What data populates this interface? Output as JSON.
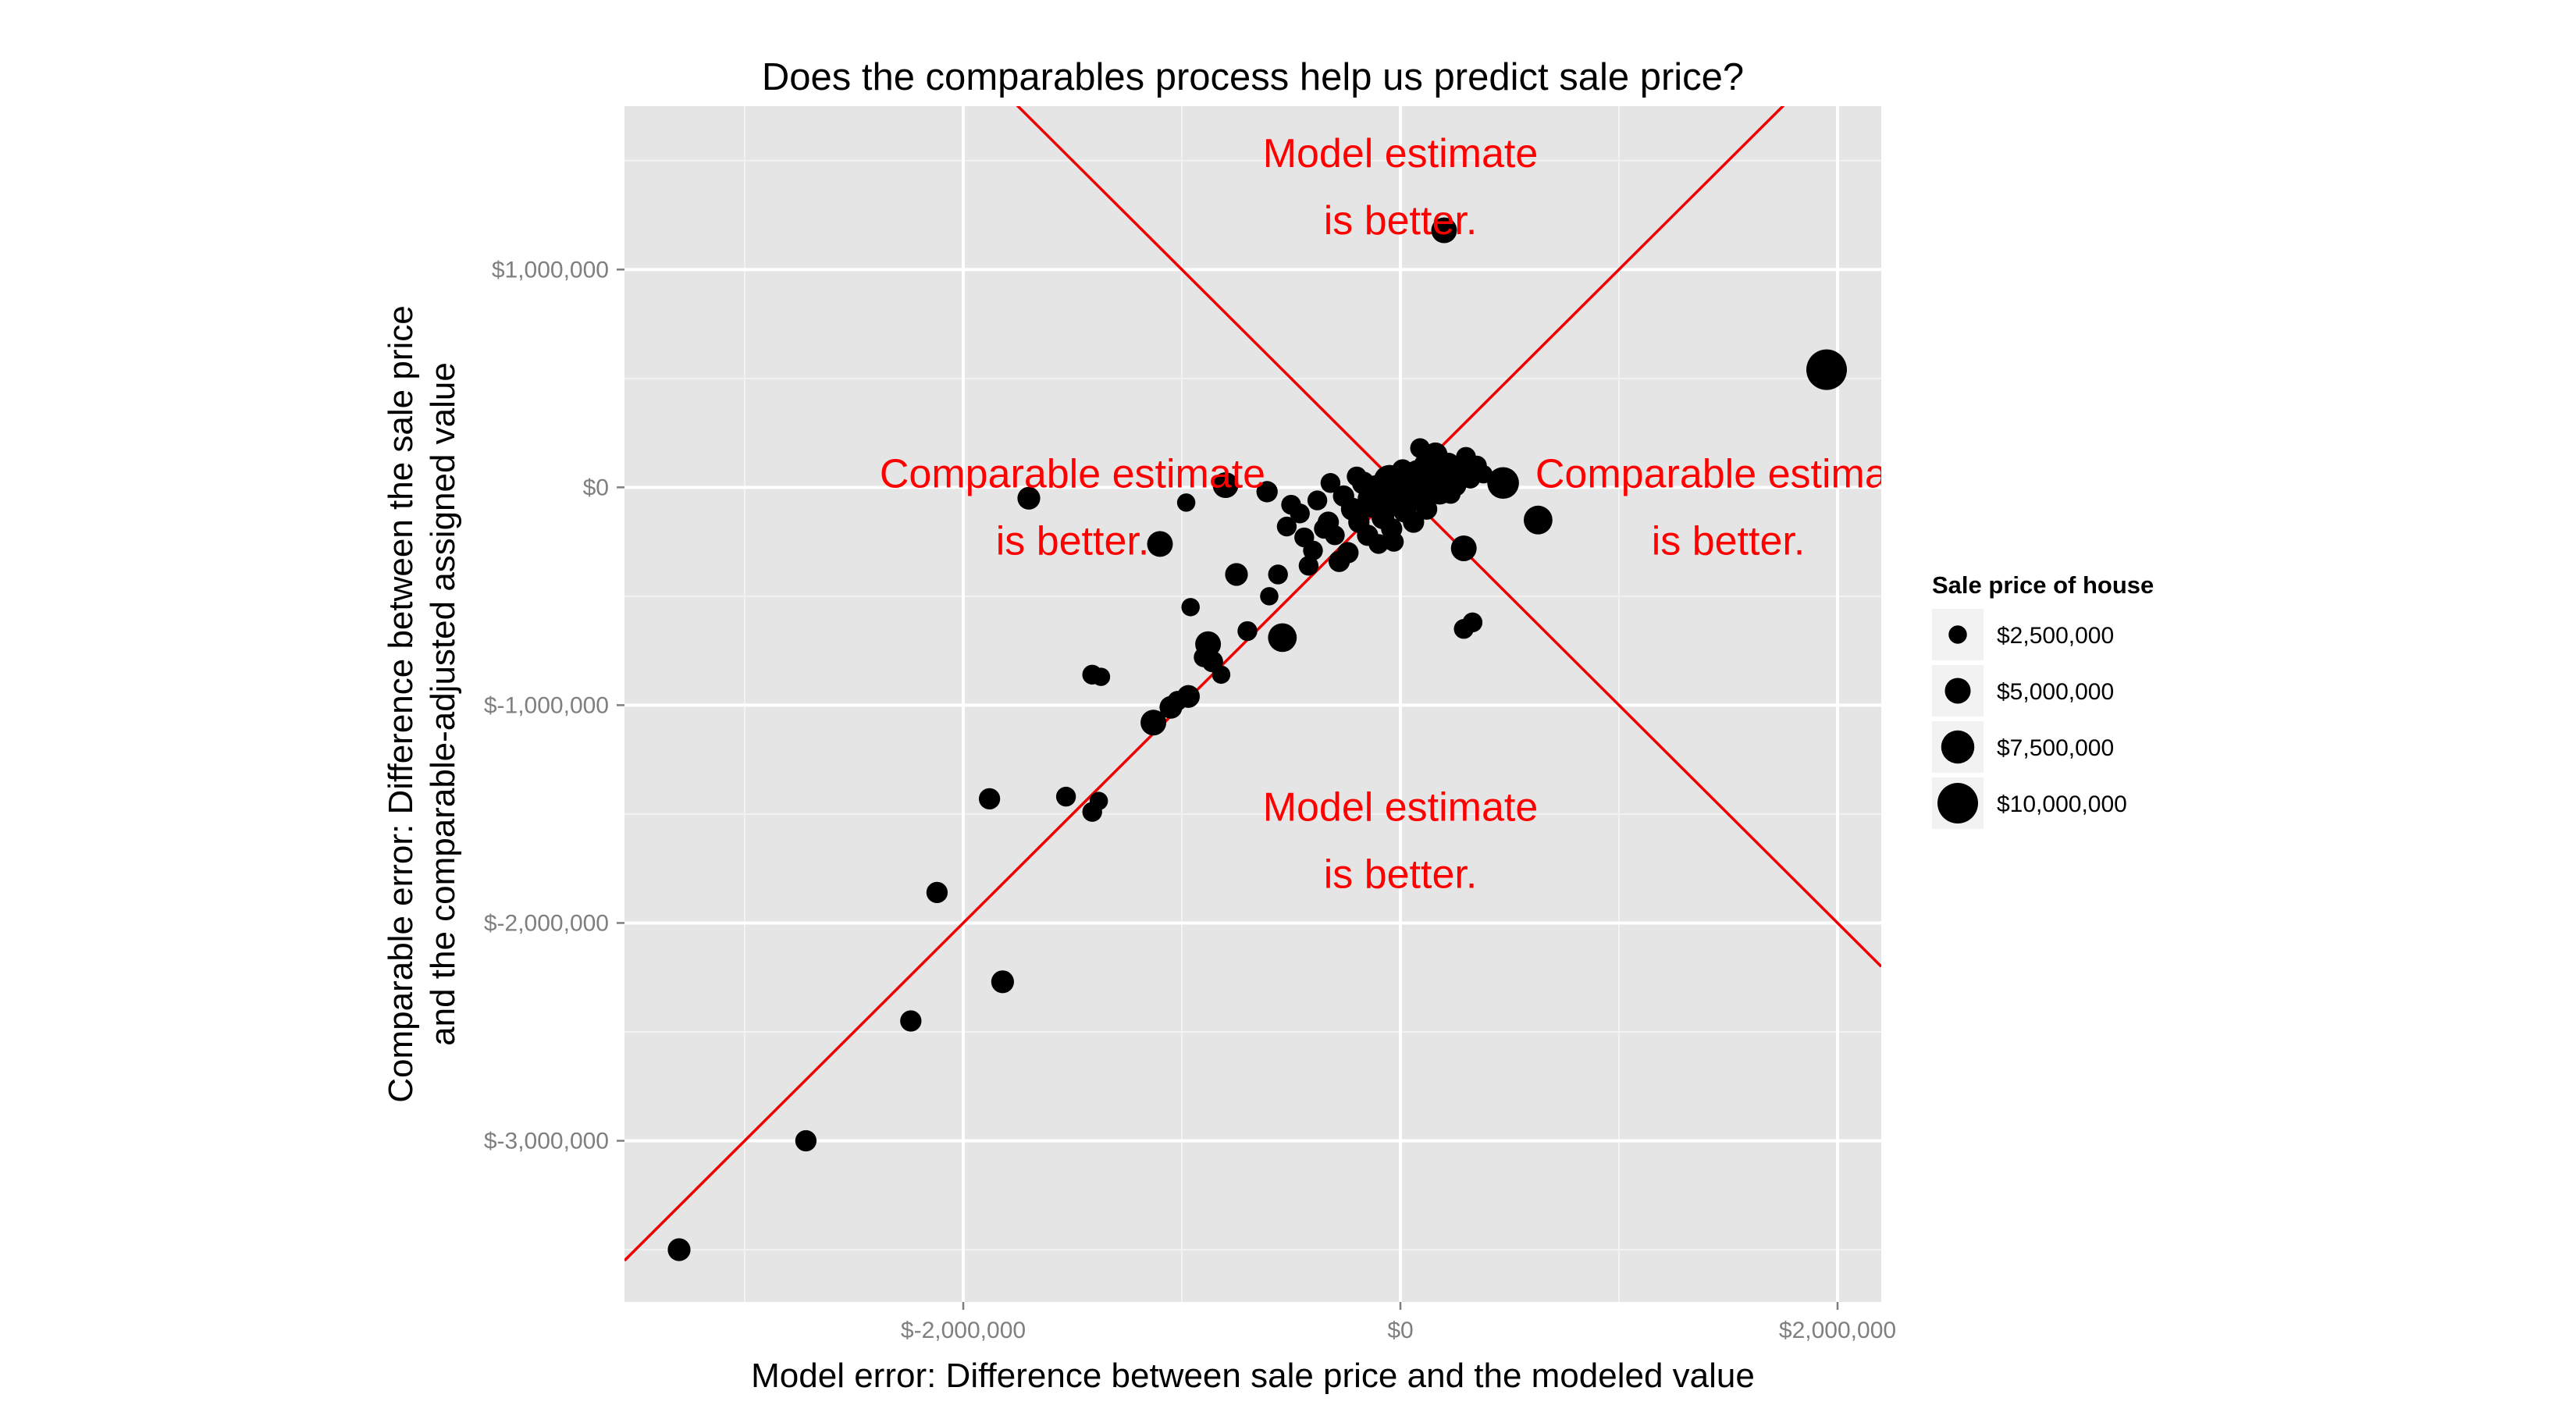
{
  "chart_data": {
    "type": "scatter",
    "title": "Does the comparables process help us predict sale price?",
    "xlabel": "Model error: Difference between sale price and the modeled value",
    "ylabel_lines": [
      "Comparable error: Difference between the sale price",
      "and the comparable-adjusted assigned value"
    ],
    "xlim": [
      -3550000,
      2200000
    ],
    "ylim": [
      -3740000,
      1750000
    ],
    "x_ticks": [
      {
        "value": -2000000,
        "label": "$-2,000,000"
      },
      {
        "value": 0,
        "label": "$0"
      },
      {
        "value": 2000000,
        "label": "$2,000,000"
      }
    ],
    "y_ticks": [
      {
        "value": 1000000,
        "label": "$1,000,000"
      },
      {
        "value": 0,
        "label": "$0"
      },
      {
        "value": -1000000,
        "label": "$-1,000,000"
      },
      {
        "value": -2000000,
        "label": "$-2,000,000"
      },
      {
        "value": -3000000,
        "label": "$-3,000,000"
      }
    ],
    "reference_lines": [
      {
        "name": "y = x",
        "slope": 1,
        "color": "#ee0000"
      },
      {
        "name": "y = -x",
        "slope": -1,
        "color": "#ee0000"
      }
    ],
    "annotations": [
      {
        "lines": [
          "Model estimate",
          "is better."
        ],
        "x": 0,
        "y": 1470000
      },
      {
        "lines": [
          "Comparable estimate",
          "is better."
        ],
        "x": -1500000,
        "y": 0
      },
      {
        "lines": [
          "Comparable estimate",
          "is better."
        ],
        "x": 1500000,
        "y": 0
      },
      {
        "lines": [
          "Model estimate",
          "is better."
        ],
        "x": 0,
        "y": -1530000
      }
    ],
    "annotation_color": "#ff0000",
    "size_legend": {
      "title": "Sale price of house",
      "entries": [
        {
          "label": "$2,500,000",
          "value": 2500000
        },
        {
          "label": "$5,000,000",
          "value": 5000000
        },
        {
          "label": "$7,500,000",
          "value": 7500000
        },
        {
          "label": "$10,000,000",
          "value": 10000000
        }
      ]
    },
    "points": [
      {
        "x": 200000,
        "y": 1180000,
        "size": 5000000
      },
      {
        "x": 1950000,
        "y": 540000,
        "size": 10000000
      },
      {
        "x": -1700000,
        "y": -50000,
        "size": 4000000
      },
      {
        "x": -800000,
        "y": 10000,
        "size": 5000000
      },
      {
        "x": -1100000,
        "y": -260000,
        "size": 5000000
      },
      {
        "x": 470000,
        "y": 20000,
        "size": 7000000
      },
      {
        "x": 630000,
        "y": -150000,
        "size": 6000000
      },
      {
        "x": 290000,
        "y": -280000,
        "size": 5000000
      },
      {
        "x": -980000,
        "y": -70000,
        "size": 2500000
      },
      {
        "x": -750000,
        "y": -400000,
        "size": 4000000
      },
      {
        "x": -880000,
        "y": -720000,
        "size": 5000000
      },
      {
        "x": -540000,
        "y": -690000,
        "size": 6000000
      },
      {
        "x": -1050000,
        "y": -1010000,
        "size": 4000000
      },
      {
        "x": -970000,
        "y": -960000,
        "size": 4000000
      },
      {
        "x": -1130000,
        "y": -1080000,
        "size": 5000000
      },
      {
        "x": -1410000,
        "y": -860000,
        "size": 3000000
      },
      {
        "x": -1370000,
        "y": -870000,
        "size": 2500000
      },
      {
        "x": -1530000,
        "y": -1420000,
        "size": 3000000
      },
      {
        "x": -1410000,
        "y": -1490000,
        "size": 3000000
      },
      {
        "x": -1380000,
        "y": -1440000,
        "size": 2500000
      },
      {
        "x": -1880000,
        "y": -1430000,
        "size": 3500000
      },
      {
        "x": -2120000,
        "y": -1860000,
        "size": 3500000
      },
      {
        "x": -1820000,
        "y": -2270000,
        "size": 4000000
      },
      {
        "x": -2240000,
        "y": -2450000,
        "size": 3500000
      },
      {
        "x": -2720000,
        "y": -3000000,
        "size": 3500000
      },
      {
        "x": -3300000,
        "y": -3500000,
        "size": 4000000
      },
      {
        "x": 290000,
        "y": -650000,
        "size": 3000000
      },
      {
        "x": 330000,
        "y": -620000,
        "size": 3000000
      },
      {
        "x": -610000,
        "y": -20000,
        "size": 3500000
      },
      {
        "x": -500000,
        "y": -80000,
        "size": 3000000
      },
      {
        "x": -560000,
        "y": -400000,
        "size": 3000000
      },
      {
        "x": -600000,
        "y": -500000,
        "size": 2500000
      },
      {
        "x": -860000,
        "y": -800000,
        "size": 3500000
      },
      {
        "x": -900000,
        "y": -780000,
        "size": 3000000
      },
      {
        "x": -820000,
        "y": -860000,
        "size": 2500000
      },
      {
        "x": -1020000,
        "y": -980000,
        "size": 3000000
      },
      {
        "x": -960000,
        "y": -550000,
        "size": 2500000
      },
      {
        "x": -700000,
        "y": -660000,
        "size": 3000000
      },
      {
        "x": -520000,
        "y": -180000,
        "size": 3000000
      },
      {
        "x": -460000,
        "y": -120000,
        "size": 3000000
      },
      {
        "x": -440000,
        "y": -230000,
        "size": 3000000
      },
      {
        "x": -400000,
        "y": -290000,
        "size": 3000000
      },
      {
        "x": -380000,
        "y": -60000,
        "size": 3000000
      },
      {
        "x": -330000,
        "y": -160000,
        "size": 3500000
      },
      {
        "x": -300000,
        "y": -220000,
        "size": 3000000
      },
      {
        "x": -260000,
        "y": -40000,
        "size": 3500000
      },
      {
        "x": -240000,
        "y": -300000,
        "size": 3500000
      },
      {
        "x": -220000,
        "y": -100000,
        "size": 4000000
      },
      {
        "x": -190000,
        "y": -160000,
        "size": 3500000
      },
      {
        "x": -170000,
        "y": 20000,
        "size": 4000000
      },
      {
        "x": -150000,
        "y": -220000,
        "size": 3500000
      },
      {
        "x": -130000,
        "y": -80000,
        "size": 5000000
      },
      {
        "x": -110000,
        "y": -10000,
        "size": 6000000
      },
      {
        "x": -100000,
        "y": -260000,
        "size": 3000000
      },
      {
        "x": -80000,
        "y": -140000,
        "size": 4000000
      },
      {
        "x": -60000,
        "y": -40000,
        "size": 6000000
      },
      {
        "x": -40000,
        "y": -190000,
        "size": 3500000
      },
      {
        "x": -20000,
        "y": -60000,
        "size": 7000000
      },
      {
        "x": 0,
        "y": 10000,
        "size": 5000000
      },
      {
        "x": 20000,
        "y": -110000,
        "size": 4000000
      },
      {
        "x": 40000,
        "y": 30000,
        "size": 5000000
      },
      {
        "x": 60000,
        "y": -30000,
        "size": 4000000
      },
      {
        "x": 80000,
        "y": 60000,
        "size": 6000000
      },
      {
        "x": 100000,
        "y": -60000,
        "size": 4000000
      },
      {
        "x": 120000,
        "y": 100000,
        "size": 5000000
      },
      {
        "x": 140000,
        "y": 20000,
        "size": 7000000
      },
      {
        "x": 160000,
        "y": 150000,
        "size": 4500000
      },
      {
        "x": 180000,
        "y": -20000,
        "size": 5000000
      },
      {
        "x": 200000,
        "y": 60000,
        "size": 4000000
      },
      {
        "x": 220000,
        "y": 110000,
        "size": 3500000
      },
      {
        "x": 250000,
        "y": 10000,
        "size": 4000000
      },
      {
        "x": 270000,
        "y": 70000,
        "size": 3500000
      },
      {
        "x": 300000,
        "y": 140000,
        "size": 3000000
      },
      {
        "x": 320000,
        "y": 40000,
        "size": 3000000
      },
      {
        "x": 350000,
        "y": 100000,
        "size": 3000000
      },
      {
        "x": 380000,
        "y": 60000,
        "size": 2500000
      },
      {
        "x": 120000,
        "y": -100000,
        "size": 3500000
      },
      {
        "x": 60000,
        "y": -160000,
        "size": 3500000
      },
      {
        "x": -30000,
        "y": -250000,
        "size": 3000000
      },
      {
        "x": 10000,
        "y": 80000,
        "size": 3500000
      },
      {
        "x": 90000,
        "y": 180000,
        "size": 3000000
      },
      {
        "x": -200000,
        "y": 50000,
        "size": 3000000
      },
      {
        "x": -320000,
        "y": 20000,
        "size": 3000000
      },
      {
        "x": -420000,
        "y": -360000,
        "size": 3000000
      },
      {
        "x": -280000,
        "y": -340000,
        "size": 3500000
      },
      {
        "x": -50000,
        "y": 30000,
        "size": 7000000
      },
      {
        "x": 150000,
        "y": 30000,
        "size": 8000000
      },
      {
        "x": 230000,
        "y": -30000,
        "size": 3000000
      },
      {
        "x": 180000,
        "y": 120000,
        "size": 3000000
      },
      {
        "x": -150000,
        "y": -50000,
        "size": 3000000
      },
      {
        "x": -350000,
        "y": -190000,
        "size": 3000000
      }
    ]
  }
}
